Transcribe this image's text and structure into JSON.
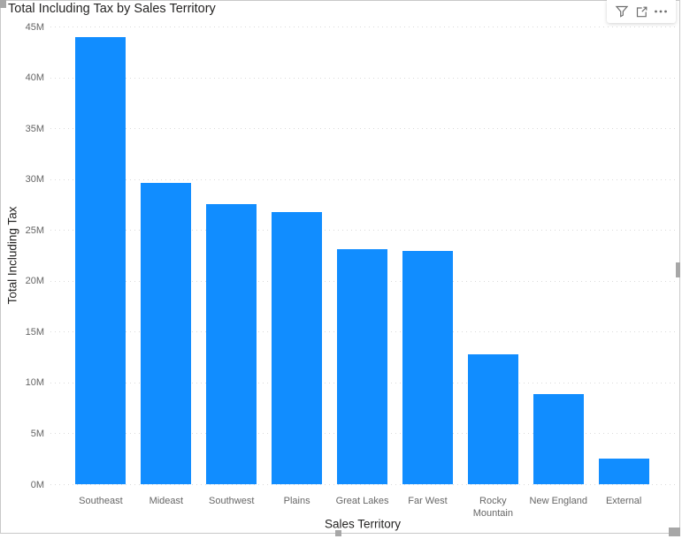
{
  "visual": {
    "title": "Total Including Tax by Sales Territory",
    "toolbar": {
      "filter_tooltip": "Filters",
      "focus_mode_tooltip": "Focus mode",
      "more_options_tooltip": "More options"
    }
  },
  "chart_data": {
    "type": "bar",
    "title": "Total Including Tax by Sales Territory",
    "xlabel": "Sales Territory",
    "ylabel": "Total Including Tax",
    "categories": [
      "Southeast",
      "Mideast",
      "Southwest",
      "Plains",
      "Great Lakes",
      "Far West",
      "Rocky Mountain",
      "New England",
      "External"
    ],
    "values": [
      44.0,
      29.6,
      27.5,
      26.8,
      23.1,
      22.9,
      12.8,
      8.9,
      2.5
    ],
    "value_unit": "M",
    "ylim": [
      0,
      45
    ],
    "ytick_step": 5,
    "ytick_labels": [
      "0M",
      "5M",
      "10M",
      "15M",
      "20M",
      "25M",
      "30M",
      "35M",
      "40M",
      "45M"
    ],
    "grid": "horizontal-dotted",
    "legend": "none",
    "bar_color": "#118DFF"
  },
  "palette": {
    "bar": "#118DFF",
    "title_text": "#252423",
    "axis_tick_text": "#666666",
    "axis_title_text": "#252423",
    "gridline": "#DADADA",
    "container_border": "#C9C9C9",
    "resize_handle": "#A7A7A7",
    "toolbar_icon": "#6E6E6E"
  }
}
